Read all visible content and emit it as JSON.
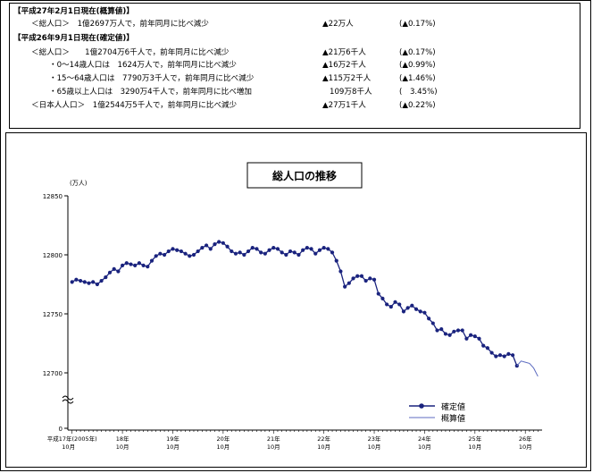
{
  "summary": {
    "heading_estimate": "【平成27年2月1日現在(概算値)】",
    "estimate_total": {
      "label": "＜総人口＞　1億2697万人で，前年同月に比べ減少",
      "change": "▲22万人",
      "pct": "(▲0.17%)"
    },
    "heading_confirmed": "【平成26年9月1日現在(確定値)】",
    "rows": [
      {
        "label": "＜総人口＞　　1億2704万6千人で，前年同月に比べ減少",
        "change": "▲21万6千人",
        "pct": "(▲0.17%)"
      },
      {
        "label": "・0～14歳人口は　1624万人で，前年同月に比べ減少",
        "change": "▲16万2千人",
        "pct": "(▲0.99%)"
      },
      {
        "label": "・15～64歳人口は　7790万3千人で，前年同月に比べ減少",
        "change": "▲115万2千人",
        "pct": "(▲1.46%)"
      },
      {
        "label": "・65歳以上人口は　3290万4千人で，前年同月に比べ増加",
        "change": "109万8千人",
        "pct": "(　3.45%)"
      },
      {
        "label": "＜日本人人口＞　1億2544万5千人で，前年同月に比べ減少",
        "change": "▲27万1千人",
        "pct": "(▲0.22%)"
      }
    ]
  },
  "chart_data": {
    "type": "line",
    "title": "総人口の推移",
    "ylabel": "(万人)",
    "y_ticks": [
      12850,
      12800,
      12750,
      12700,
      0
    ],
    "ylim": [
      12680,
      12850
    ],
    "y_axis_break": true,
    "x_ticks": [
      {
        "year": "平成17年(2005年)",
        "month": "10月",
        "x": 0
      },
      {
        "year": "18年",
        "month": "10月",
        "x": 12
      },
      {
        "year": "19年",
        "month": "10月",
        "x": 24
      },
      {
        "year": "20年",
        "month": "10月",
        "x": 36
      },
      {
        "year": "21年",
        "month": "10月",
        "x": 48
      },
      {
        "year": "22年",
        "month": "10月",
        "x": 60
      },
      {
        "year": "23年",
        "month": "10月",
        "x": 72
      },
      {
        "year": "24年",
        "month": "10月",
        "x": 84
      },
      {
        "year": "25年",
        "month": "10月",
        "x": 96
      },
      {
        "year": "26年",
        "month": "10月",
        "x": 108
      }
    ],
    "x_unit": "months since 平成17年10月",
    "legend": {
      "position": "bottom-right",
      "confirmed_label": "確定値",
      "estimate_label": "概算値"
    },
    "series": [
      {
        "name": "確定値",
        "color": "#1a237e",
        "marker": true,
        "points": [
          [
            0,
            12777
          ],
          [
            1,
            12779
          ],
          [
            2,
            12778
          ],
          [
            3,
            12777
          ],
          [
            4,
            12776
          ],
          [
            5,
            12777
          ],
          [
            6,
            12775
          ],
          [
            7,
            12778
          ],
          [
            8,
            12781
          ],
          [
            9,
            12785
          ],
          [
            10,
            12788
          ],
          [
            11,
            12786
          ],
          [
            12,
            12791
          ],
          [
            13,
            12793
          ],
          [
            14,
            12792
          ],
          [
            15,
            12791
          ],
          [
            16,
            12793
          ],
          [
            17,
            12791
          ],
          [
            18,
            12790
          ],
          [
            19,
            12795
          ],
          [
            20,
            12799
          ],
          [
            21,
            12801
          ],
          [
            22,
            12800
          ],
          [
            23,
            12803
          ],
          [
            24,
            12805
          ],
          [
            25,
            12804
          ],
          [
            26,
            12803
          ],
          [
            27,
            12801
          ],
          [
            28,
            12799
          ],
          [
            29,
            12800
          ],
          [
            30,
            12803
          ],
          [
            31,
            12806
          ],
          [
            32,
            12808
          ],
          [
            33,
            12805
          ],
          [
            34,
            12809
          ],
          [
            35,
            12811
          ],
          [
            36,
            12810
          ],
          [
            37,
            12807
          ],
          [
            38,
            12803
          ],
          [
            39,
            12801
          ],
          [
            40,
            12802
          ],
          [
            41,
            12800
          ],
          [
            42,
            12803
          ],
          [
            43,
            12806
          ],
          [
            44,
            12805
          ],
          [
            45,
            12802
          ],
          [
            46,
            12801
          ],
          [
            47,
            12804
          ],
          [
            48,
            12806
          ],
          [
            49,
            12805
          ],
          [
            50,
            12802
          ],
          [
            51,
            12800
          ],
          [
            52,
            12803
          ],
          [
            53,
            12802
          ],
          [
            54,
            12800
          ],
          [
            55,
            12804
          ],
          [
            56,
            12806
          ],
          [
            57,
            12805
          ],
          [
            58,
            12801
          ],
          [
            59,
            12804
          ],
          [
            60,
            12806
          ],
          [
            61,
            12805
          ],
          [
            62,
            12802
          ],
          [
            63,
            12795
          ],
          [
            64,
            12786
          ],
          [
            65,
            12773
          ],
          [
            66,
            12776
          ],
          [
            67,
            12780
          ],
          [
            68,
            12782
          ],
          [
            69,
            12782
          ],
          [
            70,
            12778
          ],
          [
            71,
            12780
          ],
          [
            72,
            12779
          ],
          [
            73,
            12767
          ],
          [
            74,
            12763
          ],
          [
            75,
            12758
          ],
          [
            76,
            12756
          ],
          [
            77,
            12760
          ],
          [
            78,
            12758
          ],
          [
            79,
            12752
          ],
          [
            80,
            12755
          ],
          [
            81,
            12757
          ],
          [
            82,
            12754
          ],
          [
            83,
            12752
          ],
          [
            84,
            12751
          ],
          [
            85,
            12746
          ],
          [
            86,
            12742
          ],
          [
            87,
            12736
          ],
          [
            88,
            12737
          ],
          [
            89,
            12733
          ],
          [
            90,
            12732
          ],
          [
            91,
            12735
          ],
          [
            92,
            12736
          ],
          [
            93,
            12736
          ],
          [
            94,
            12729
          ],
          [
            95,
            12732
          ],
          [
            96,
            12731
          ],
          [
            97,
            12729
          ],
          [
            98,
            12723
          ],
          [
            99,
            12721
          ],
          [
            100,
            12717
          ],
          [
            101,
            12714
          ],
          [
            102,
            12715
          ],
          [
            103,
            12714
          ],
          [
            104,
            12716
          ],
          [
            105,
            12715
          ],
          [
            106,
            12706
          ]
        ]
      },
      {
        "name": "概算値",
        "color": "#5c6bc0",
        "marker": false,
        "points": [
          [
            106,
            12706
          ],
          [
            107,
            12710
          ],
          [
            108,
            12709
          ],
          [
            109,
            12708
          ],
          [
            110,
            12704
          ],
          [
            111,
            12697
          ]
        ]
      }
    ]
  }
}
